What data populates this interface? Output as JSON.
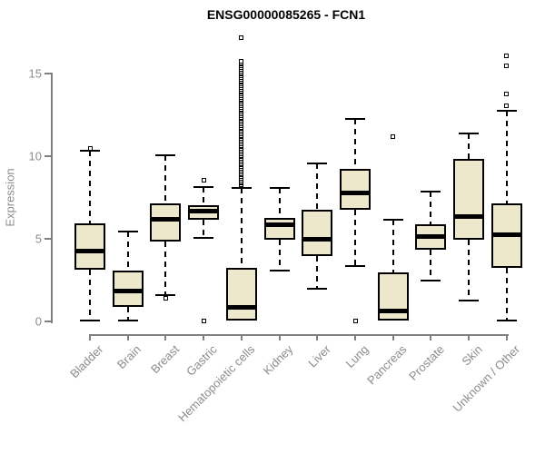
{
  "title": "ENSG00000085265 - FCN1",
  "colors": {
    "box_fill": "#EDE7CB",
    "box_border": "#000000",
    "median": "#000000",
    "outlier": "#000000",
    "axis": "#7f7f7f",
    "label_gray": "#8c8c8c",
    "title_color": "#000000"
  },
  "chart_data": {
    "type": "boxplot",
    "title": "ENSG00000085265 - FCN1",
    "xlabel": "",
    "ylabel": "Expression",
    "ylim": [
      0,
      17.5
    ],
    "yticks": [
      0,
      5,
      10,
      15
    ],
    "grid": false,
    "legend": false,
    "categories": [
      "Bladder",
      "Brain",
      "Breast",
      "Gastric",
      "Hematopoietic cells",
      "Kidney",
      "Liver",
      "Lung",
      "Pancreas",
      "Prostate",
      "Skin",
      "Unknown / Other"
    ],
    "boxes": [
      {
        "name": "Bladder",
        "whisker_low": 0.0,
        "q1": 3.1,
        "median": 4.2,
        "q3": 5.9,
        "whisker_high": 10.3,
        "outliers": [
          10.4
        ],
        "outlier_column": null
      },
      {
        "name": "Brain",
        "whisker_low": 0.0,
        "q1": 0.8,
        "median": 1.8,
        "q3": 3.0,
        "whisker_high": 5.4,
        "outliers": [],
        "outlier_column": null
      },
      {
        "name": "Breast",
        "whisker_low": 1.55,
        "q1": 4.8,
        "median": 6.1,
        "q3": 7.1,
        "whisker_high": 10.0,
        "outliers": [
          1.35
        ],
        "outlier_column": null
      },
      {
        "name": "Gastric",
        "whisker_low": 5.0,
        "q1": 6.1,
        "median": 6.6,
        "q3": 7.0,
        "whisker_high": 8.1,
        "outliers": [
          8.5,
          0.0
        ],
        "outlier_column": null
      },
      {
        "name": "Hematopoietic cells",
        "whisker_low": 0.0,
        "q1": 0.0,
        "median": 0.8,
        "q3": 3.2,
        "whisker_high": 8.0,
        "outliers": [
          17.1
        ],
        "outlier_column": {
          "from": 8.2,
          "to": 15.7,
          "step": 0.1
        }
      },
      {
        "name": "Kidney",
        "whisker_low": 3.0,
        "q1": 4.9,
        "median": 5.8,
        "q3": 6.2,
        "whisker_high": 8.0,
        "outliers": [],
        "outlier_column": null
      },
      {
        "name": "Liver",
        "whisker_low": 1.9,
        "q1": 3.9,
        "median": 4.9,
        "q3": 6.7,
        "whisker_high": 9.5,
        "outliers": [],
        "outlier_column": null
      },
      {
        "name": "Lung",
        "whisker_low": 3.3,
        "q1": 6.7,
        "median": 7.7,
        "q3": 9.2,
        "whisker_high": 12.2,
        "outliers": [
          0.0
        ],
        "outlier_column": null
      },
      {
        "name": "Pancreas",
        "whisker_low": 0.0,
        "q1": 0.0,
        "median": 0.6,
        "q3": 2.9,
        "whisker_high": 6.1,
        "outliers": [
          11.1
        ],
        "outlier_column": null
      },
      {
        "name": "Prostate",
        "whisker_low": 2.4,
        "q1": 4.3,
        "median": 5.1,
        "q3": 5.8,
        "whisker_high": 7.8,
        "outliers": [],
        "outlier_column": null
      },
      {
        "name": "Skin",
        "whisker_low": 1.2,
        "q1": 4.9,
        "median": 6.3,
        "q3": 9.8,
        "whisker_high": 11.3,
        "outliers": [],
        "outlier_column": null
      },
      {
        "name": "Unknown / Other",
        "whisker_low": 0.0,
        "q1": 3.2,
        "median": 5.2,
        "q3": 7.1,
        "whisker_high": 12.7,
        "outliers": [
          13.0,
          13.7,
          15.4,
          16.0
        ],
        "outlier_column": null
      }
    ]
  }
}
